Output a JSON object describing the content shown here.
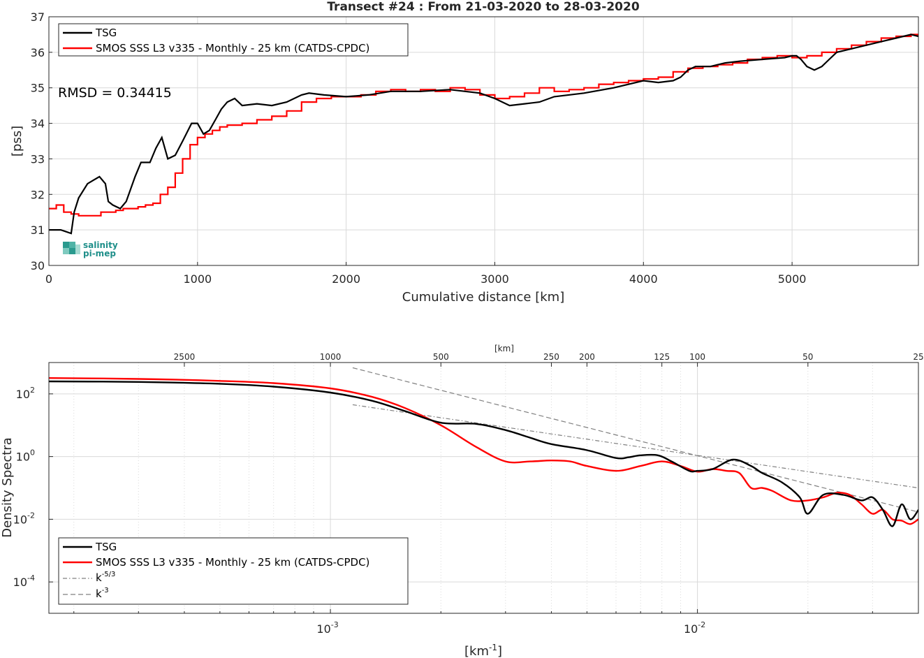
{
  "title": "Transect #24 : From 21-03-2020 to 28-03-2020",
  "rmsd_label": "RMSD = 0.34415",
  "logo": {
    "line1": "salinity",
    "line2": "pi-mep"
  },
  "legend": {
    "tsg": "TSG",
    "smos": "SMOS SSS L3 v335 - Monthly - 25 km (CATDS-CPDC)",
    "k53_base": "k",
    "k53_exp": "-5/3",
    "k3_base": "k",
    "k3_exp": "-3"
  },
  "colors": {
    "tsg": "#000000",
    "smos": "#ff0000",
    "ref": "#808080"
  },
  "chart_data": [
    {
      "type": "line",
      "title": "Transect #24 : From 21-03-2020 to 28-03-2020",
      "xlabel": "Cumulative distance [km]",
      "ylabel": "[pss]",
      "xlim": [
        0,
        5850
      ],
      "ylim": [
        30,
        37
      ],
      "xticks": [
        0,
        1000,
        2000,
        3000,
        4000,
        5000
      ],
      "xtick_labels": [
        "0",
        "1000",
        "2000",
        "3000",
        "4000",
        "5000"
      ],
      "yticks": [
        30,
        31,
        32,
        33,
        34,
        35,
        36,
        37
      ],
      "ytick_labels": [
        "30",
        "31",
        "32",
        "33",
        "34",
        "35",
        "36",
        "37"
      ],
      "grid": true,
      "legend_position": "top-left",
      "series": [
        {
          "name": "TSG",
          "x": [
            0,
            80,
            150,
            170,
            200,
            260,
            300,
            340,
            380,
            400,
            430,
            480,
            520,
            580,
            620,
            680,
            720,
            760,
            800,
            850,
            900,
            960,
            1000,
            1040,
            1080,
            1120,
            1160,
            1200,
            1250,
            1300,
            1400,
            1500,
            1600,
            1700,
            1750,
            1850,
            2000,
            2150,
            2300,
            2500,
            2700,
            2800,
            2900,
            3000,
            3100,
            3200,
            3300,
            3400,
            3600,
            3800,
            4000,
            4100,
            4200,
            4250,
            4300,
            4350,
            4450,
            4550,
            4650,
            4800,
            4950,
            5000,
            5030,
            5060,
            5100,
            5150,
            5200,
            5250,
            5300,
            5400,
            5500,
            5600,
            5700,
            5800,
            5850
          ],
          "y": [
            31.0,
            31.0,
            30.9,
            31.5,
            31.9,
            32.3,
            32.4,
            32.5,
            32.3,
            31.8,
            31.7,
            31.6,
            31.8,
            32.5,
            32.9,
            32.9,
            33.3,
            33.6,
            33.0,
            33.1,
            33.5,
            34.0,
            34.0,
            33.7,
            33.8,
            34.1,
            34.4,
            34.6,
            34.7,
            34.5,
            34.55,
            34.5,
            34.6,
            34.8,
            34.85,
            34.8,
            34.75,
            34.8,
            34.9,
            34.9,
            34.95,
            34.9,
            34.85,
            34.7,
            34.5,
            34.55,
            34.6,
            34.75,
            34.85,
            35.0,
            35.2,
            35.15,
            35.2,
            35.3,
            35.5,
            35.6,
            35.6,
            35.7,
            35.75,
            35.8,
            35.85,
            35.9,
            35.9,
            35.8,
            35.6,
            35.5,
            35.6,
            35.8,
            36.0,
            36.1,
            36.2,
            36.3,
            36.4,
            36.5,
            36.45
          ]
        },
        {
          "name": "SMOS SSS L3 v335 - Monthly - 25 km (CATDS-CPDC)",
          "x": [
            0,
            50,
            100,
            150,
            200,
            250,
            300,
            350,
            400,
            450,
            500,
            550,
            600,
            650,
            700,
            750,
            800,
            850,
            900,
            950,
            1000,
            1050,
            1100,
            1150,
            1200,
            1300,
            1400,
            1500,
            1600,
            1700,
            1800,
            1900,
            2000,
            2100,
            2200,
            2300,
            2400,
            2500,
            2600,
            2700,
            2800,
            2900,
            3000,
            3100,
            3200,
            3300,
            3400,
            3500,
            3600,
            3700,
            3800,
            3900,
            4000,
            4100,
            4200,
            4300,
            4400,
            4500,
            4600,
            4700,
            4800,
            4900,
            5000,
            5100,
            5200,
            5300,
            5400,
            5500,
            5600,
            5700,
            5800,
            5850
          ],
          "y": [
            31.6,
            31.7,
            31.5,
            31.45,
            31.4,
            31.4,
            31.4,
            31.5,
            31.5,
            31.55,
            31.6,
            31.6,
            31.65,
            31.7,
            31.75,
            32.0,
            32.2,
            32.6,
            33.0,
            33.4,
            33.6,
            33.7,
            33.8,
            33.9,
            33.95,
            34.0,
            34.1,
            34.2,
            34.35,
            34.6,
            34.7,
            34.75,
            34.75,
            34.8,
            34.9,
            34.95,
            34.9,
            34.95,
            34.9,
            35.0,
            34.95,
            34.8,
            34.7,
            34.75,
            34.85,
            35.0,
            34.9,
            34.95,
            35.0,
            35.1,
            35.15,
            35.2,
            35.25,
            35.3,
            35.45,
            35.55,
            35.6,
            35.65,
            35.7,
            35.8,
            35.85,
            35.9,
            35.85,
            35.9,
            36.0,
            36.1,
            36.2,
            36.3,
            36.4,
            36.45,
            36.5,
            36.45
          ]
        }
      ]
    },
    {
      "type": "line",
      "xlabel": "[km-1]",
      "xlabel_base": "[km",
      "xlabel_exp": "-1",
      "xlabel_end": "]",
      "ylabel": "Density Spectra",
      "x_scale": "log",
      "y_scale": "log",
      "xlim": [
        0.000171,
        0.04
      ],
      "ylim": [
        1e-05,
        1000
      ],
      "xticks": [
        0.001,
        0.01
      ],
      "xtick_bases": [
        "10",
        "10"
      ],
      "xtick_exps": [
        "-3",
        "-2"
      ],
      "yticks": [
        0.0001,
        0.01,
        1,
        100
      ],
      "ytick_bases": [
        "10",
        "10",
        "10",
        "10"
      ],
      "ytick_exps": [
        "-4",
        "-2",
        "0",
        "2"
      ],
      "top_axis_label": "[km]",
      "top_ticks_km": [
        2500,
        1000,
        500,
        250,
        200,
        125,
        100,
        50,
        25
      ],
      "top_tick_labels": [
        "2500",
        "1000",
        "500",
        "250",
        "200",
        "125",
        "100",
        "50",
        "25"
      ],
      "grid": true,
      "legend_position": "bottom-left",
      "series": [
        {
          "name": "TSG",
          "x": [
            0.000171,
            0.0003,
            0.0005,
            0.0007,
            0.001,
            0.0013,
            0.0016,
            0.002,
            0.0025,
            0.003,
            0.0035,
            0.004,
            0.005,
            0.006,
            0.0065,
            0.007,
            0.0078,
            0.0085,
            0.0095,
            0.01,
            0.011,
            0.0125,
            0.014,
            0.015,
            0.017,
            0.019,
            0.02,
            0.022,
            0.025,
            0.028,
            0.03,
            0.032,
            0.034,
            0.036,
            0.038,
            0.04
          ],
          "y": [
            250,
            240,
            210,
            170,
            110,
            60,
            28,
            12,
            11,
            7,
            4,
            2.5,
            1.6,
            0.9,
            0.95,
            1.1,
            1.1,
            0.7,
            0.35,
            0.35,
            0.4,
            0.8,
            0.5,
            0.3,
            0.15,
            0.05,
            0.015,
            0.06,
            0.06,
            0.04,
            0.05,
            0.02,
            0.006,
            0.03,
            0.01,
            0.02
          ]
        },
        {
          "name": "SMOS SSS L3 v335 - Monthly - 25 km (CATDS-CPDC)",
          "x": [
            0.000171,
            0.0003,
            0.0005,
            0.0007,
            0.001,
            0.0013,
            0.0016,
            0.002,
            0.0025,
            0.003,
            0.0035,
            0.004,
            0.0045,
            0.005,
            0.006,
            0.007,
            0.008,
            0.009,
            0.01,
            0.011,
            0.012,
            0.013,
            0.014,
            0.015,
            0.016,
            0.018,
            0.02,
            0.022,
            0.024,
            0.026,
            0.028,
            0.03,
            0.032,
            0.034,
            0.036,
            0.038,
            0.04
          ],
          "y": [
            320,
            300,
            260,
            220,
            150,
            80,
            35,
            10,
            2,
            0.7,
            0.7,
            0.75,
            0.7,
            0.5,
            0.35,
            0.5,
            0.7,
            0.5,
            0.33,
            0.4,
            0.35,
            0.3,
            0.1,
            0.1,
            0.08,
            0.04,
            0.04,
            0.05,
            0.07,
            0.06,
            0.03,
            0.015,
            0.02,
            0.01,
            0.009,
            0.007,
            0.01
          ]
        },
        {
          "name": "k-5/3",
          "x": [
            0.00115,
            0.04
          ],
          "y": [
            45,
            0.1
          ]
        },
        {
          "name": "k-3",
          "x": [
            0.00115,
            0.04
          ],
          "y": [
            680,
            0.017
          ]
        }
      ]
    }
  ]
}
